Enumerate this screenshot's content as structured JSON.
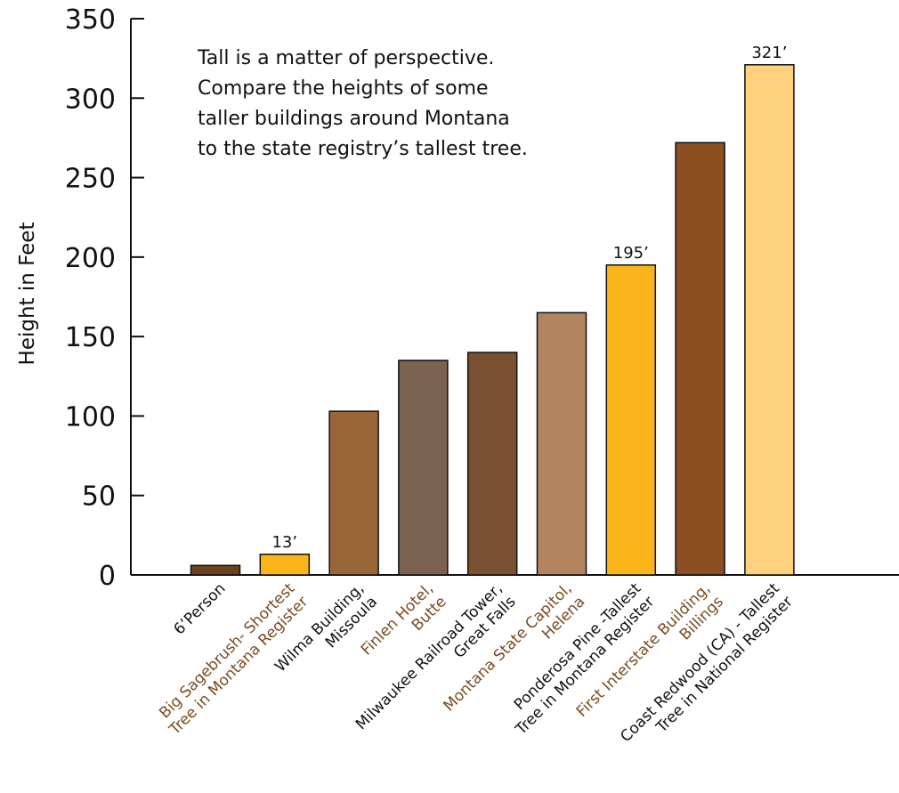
{
  "chart_data": {
    "type": "bar",
    "title": "",
    "xlabel": "",
    "ylabel": "Height in Feet",
    "ylim": [
      0,
      350
    ],
    "yticks": [
      0,
      50,
      100,
      150,
      200,
      250,
      300,
      350
    ],
    "grid": false,
    "annotation": [
      "Tall is a matter of perspective.",
      "Compare the heights of some",
      "taller buildings around Montana",
      "to the state registry’s tallest tree."
    ],
    "categories": [
      [
        "6’Person"
      ],
      [
        "Big Sagebrush- Shortest",
        "Tree in Montana Register"
      ],
      [
        "Wilma Building,",
        "Missoula"
      ],
      [
        "Finlen Hotel,",
        "Butte"
      ],
      [
        "Milwaukee Railroad Tower,",
        "Great Falls"
      ],
      [
        "Montana State Capitol,",
        "Helena"
      ],
      [
        "Ponderosa Pine -Tallest",
        "Tree in Montana Register"
      ],
      [
        "First Interstate Building,",
        "Billings"
      ],
      [
        "Coast Redwood (CA) - Tallest",
        "Tree in National Register"
      ]
    ],
    "values": [
      6,
      13,
      103,
      135,
      140,
      165,
      195,
      272,
      321
    ],
    "value_labels": [
      "",
      "13’",
      "",
      "",
      "",
      "",
      "195’",
      "",
      "321’"
    ],
    "bar_colors": [
      "#6b4220",
      "#f9b51a",
      "#9a6639",
      "#7a6150",
      "#7a5130",
      "#b2855f",
      "#f9b51a",
      "#8b4f22",
      "#fed17e"
    ],
    "label_colors": [
      "#111111",
      "#7a4a20",
      "#111111",
      "#7a4a20",
      "#111111",
      "#7a4a20",
      "#111111",
      "#7a4a20",
      "#111111"
    ]
  }
}
